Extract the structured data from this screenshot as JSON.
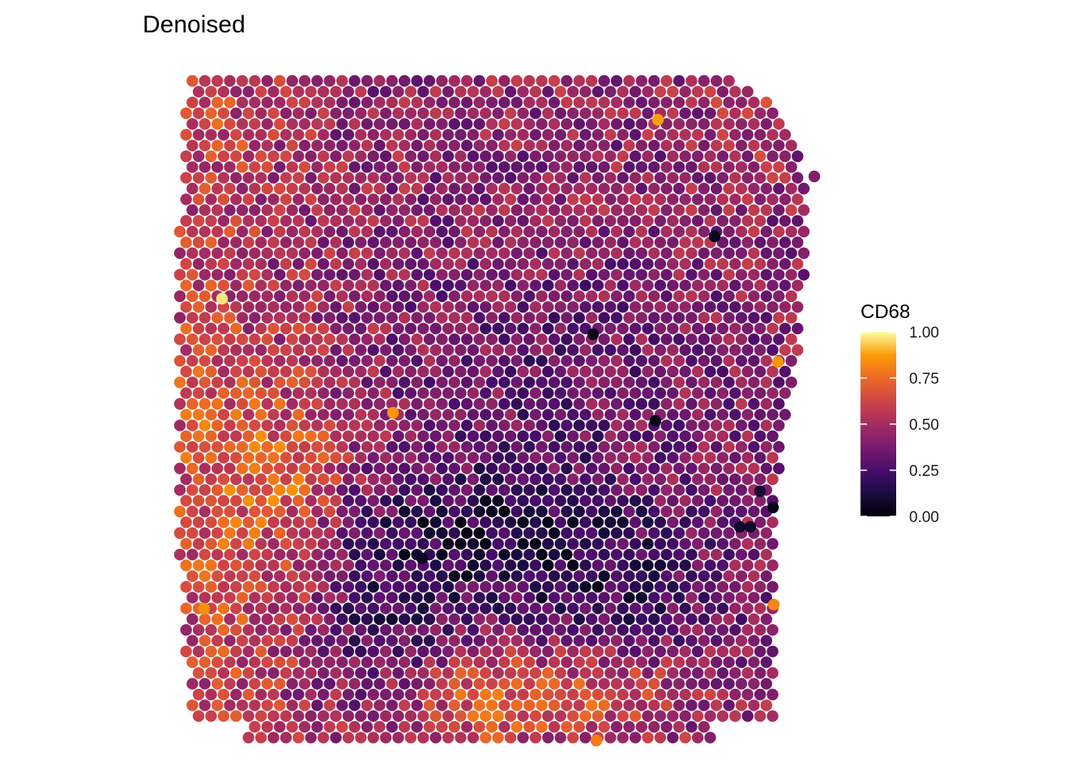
{
  "chart_data": {
    "type": "spatial-scatter",
    "title": "Denoised",
    "legend": {
      "title": "CD68",
      "placement": "right",
      "colormap": "inferno",
      "range": [
        0,
        1
      ],
      "ticks": [
        {
          "value": 1.0,
          "label": "1.00"
        },
        {
          "value": 0.75,
          "label": "0.75"
        },
        {
          "value": 0.5,
          "label": "0.50"
        },
        {
          "value": 0.25,
          "label": "0.25"
        },
        {
          "value": 0.0,
          "label": "0.00"
        }
      ]
    },
    "grid": false,
    "axes_visible": false,
    "colors": {
      "low": "#000004",
      "mid": "#bc3754",
      "high": "#fcffa4",
      "background": "#ffffff"
    }
  }
}
